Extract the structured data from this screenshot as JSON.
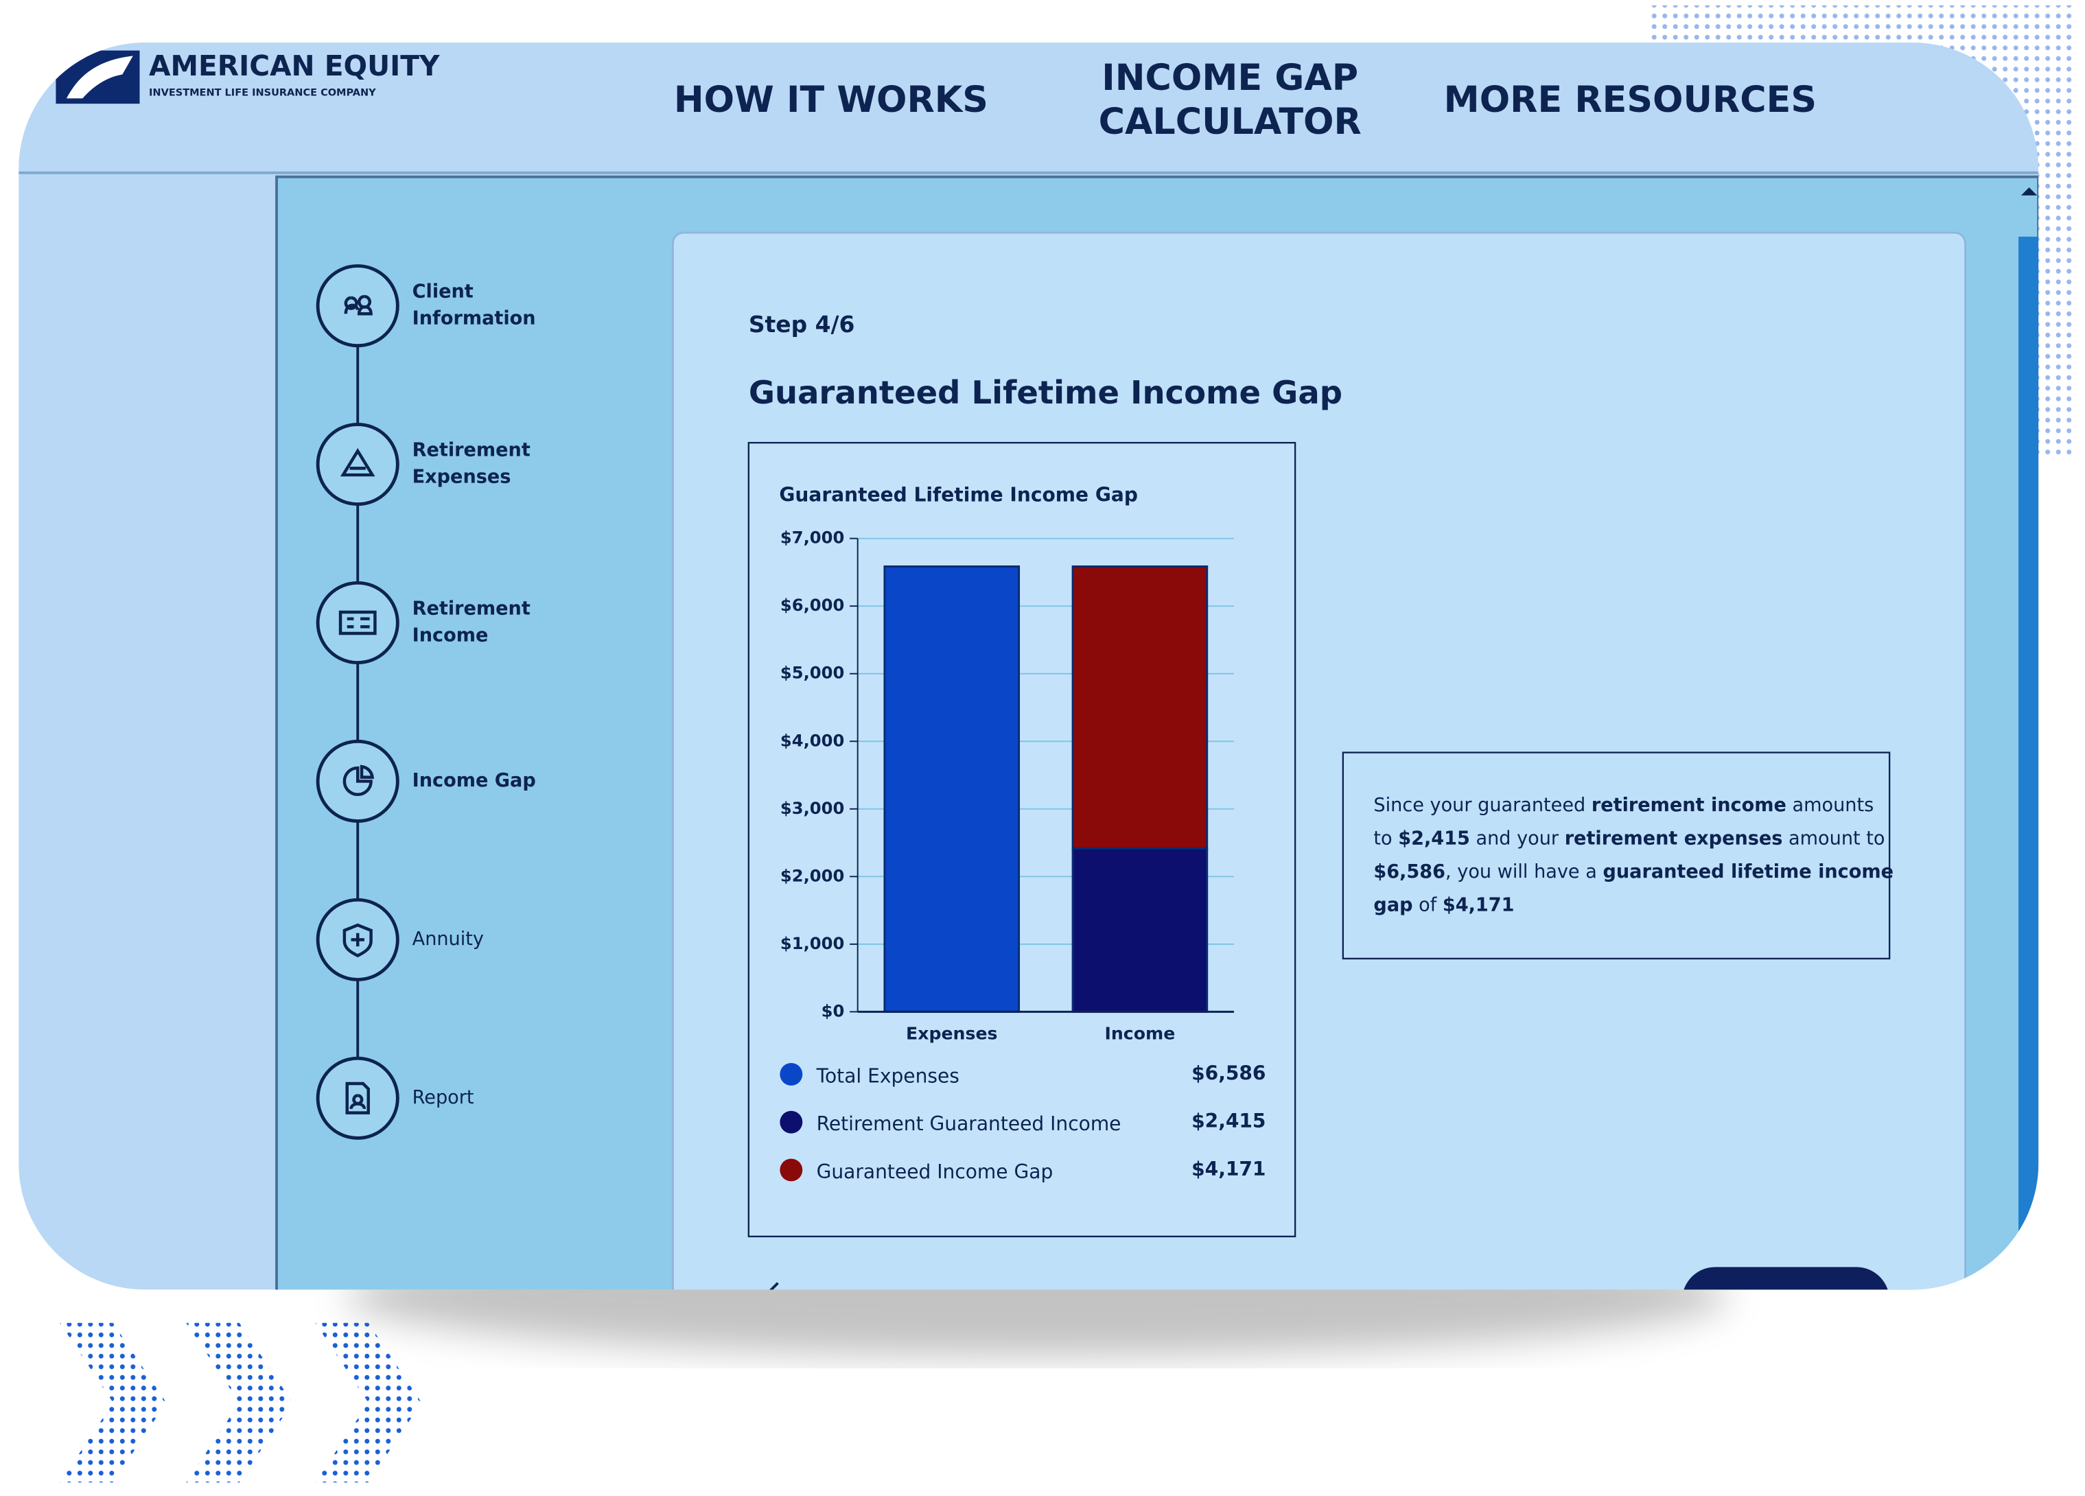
{
  "header": {
    "logo_title": "AMERICAN EQUITY",
    "logo_subtitle": "INVESTMENT LIFE INSURANCE COMPANY",
    "nav": [
      {
        "lines": [
          "HOW IT WORKS"
        ]
      },
      {
        "lines": [
          "INCOME GAP",
          "CALCULATOR"
        ]
      },
      {
        "lines": [
          "MORE RESOURCES"
        ]
      }
    ]
  },
  "steps": [
    {
      "lines": [
        "Client",
        "Information"
      ]
    },
    {
      "lines": [
        "Retirement",
        "Expenses"
      ]
    },
    {
      "lines": [
        "Retirement",
        "Income"
      ]
    },
    {
      "lines": [
        "Income Gap"
      ]
    },
    {
      "lines": [
        "Annuity"
      ]
    },
    {
      "lines": [
        "Report"
      ]
    }
  ],
  "step_label": "Step 4/6",
  "heading": "Guaranteed Lifetime Income Gap",
  "chart": {
    "type": "bar",
    "stacked": true,
    "title": "Guaranteed Lifetime Income Gap",
    "categories": [
      "Expenses",
      "Income"
    ],
    "series": [
      {
        "name": "Total Expenses",
        "color": "#0a47c8",
        "values": [
          6586,
          null
        ],
        "value_labels": [
          "$6,586",
          null
        ]
      },
      {
        "name": "Retirement Guaranteed Income",
        "color": "#0c0f6e",
        "values": [
          null,
          2415
        ],
        "value_labels": [
          null,
          "$2,415"
        ]
      },
      {
        "name": "Guaranteed Income Gap",
        "color": "#8a0a0a",
        "values": [
          null,
          4171
        ],
        "value_labels": [
          null,
          "$4,171"
        ]
      }
    ],
    "ylim": [
      0,
      7000
    ],
    "yticks": [
      {
        "value": 0,
        "label": "$0"
      },
      {
        "value": 1000,
        "label": "$1,000"
      },
      {
        "value": 2000,
        "label": "$2,000"
      },
      {
        "value": 3000,
        "label": "$3,000"
      },
      {
        "value": 4000,
        "label": "$4,000"
      },
      {
        "value": 5000,
        "label": "$5,000"
      },
      {
        "value": 6000,
        "label": "$6,000"
      },
      {
        "value": 7000,
        "label": "$7,000"
      }
    ],
    "grid": true
  },
  "summary": {
    "lines": [
      [
        {
          "text": "Since your guaranteed ",
          "bold": false
        },
        {
          "text": "retirement income",
          "bold": true
        },
        {
          "text": " amounts",
          "bold": false
        }
      ],
      [
        {
          "text": "to ",
          "bold": false
        },
        {
          "text": "$2,415",
          "bold": true
        },
        {
          "text": " and your ",
          "bold": false
        },
        {
          "text": "retirement expenses",
          "bold": true
        },
        {
          "text": " amount to",
          "bold": false
        }
      ],
      [
        {
          "text": "$6,586",
          "bold": true
        },
        {
          "text": ", you will have a ",
          "bold": false
        },
        {
          "text": "guaranteed lifetime income",
          "bold": true
        }
      ],
      [
        {
          "text": "gap",
          "bold": true
        },
        {
          "text": " of ",
          "bold": false
        },
        {
          "text": "$4,171",
          "bold": true
        }
      ]
    ]
  }
}
